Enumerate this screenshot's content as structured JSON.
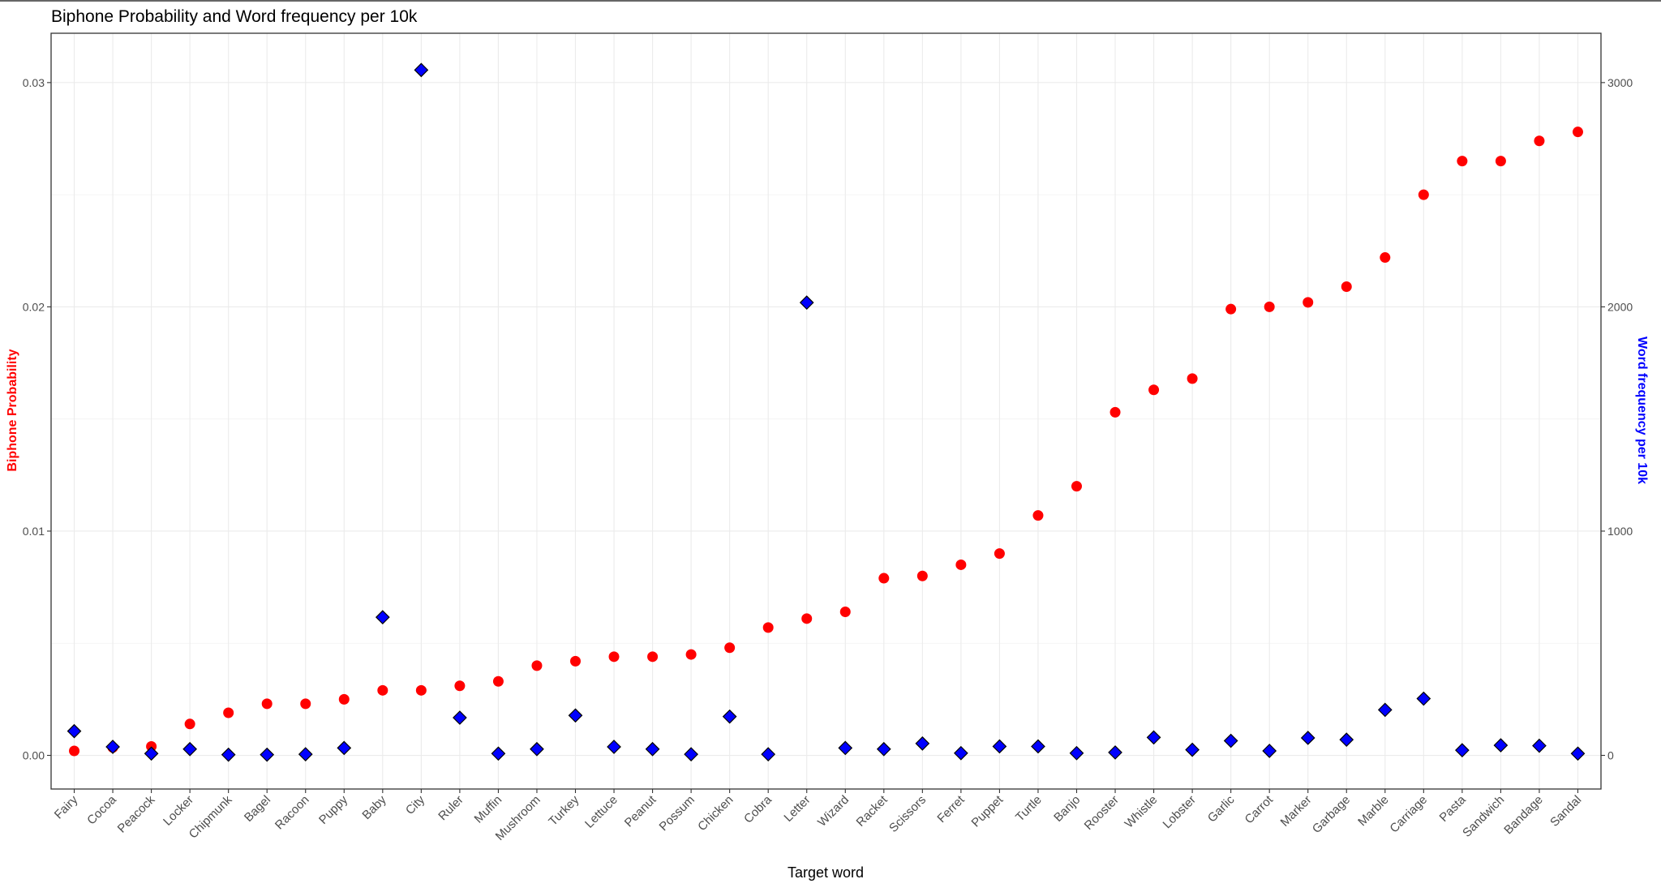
{
  "chart_data": {
    "type": "scatter",
    "title": "Biphone Probability and Word frequency per 10k",
    "xlabel": "Target word",
    "ylabel_left": "Biphone Probability",
    "ylabel_right": "Word frequency per 10k",
    "ylim_left": [
      -0.0015,
      0.0322
    ],
    "ylim_right": [
      -150,
      3220
    ],
    "yticks_left": [
      0.0,
      0.01,
      0.02,
      0.03
    ],
    "yticks_left_labels": [
      "0.00",
      "0.01",
      "0.02",
      "0.03"
    ],
    "yticks_right": [
      0,
      1000,
      2000,
      3000
    ],
    "yticks_right_labels": [
      "0",
      "1000",
      "2000",
      "3000"
    ],
    "grid": true,
    "colors": {
      "biphone": "#ff0000",
      "frequency": "#0000ff",
      "frequency_outline": "#000000"
    },
    "categories": [
      "Fairy",
      "Cocoa",
      "Peacock",
      "Locker",
      "Chipmunk",
      "Bagel",
      "Racoon",
      "Puppy",
      "Baby",
      "City",
      "Ruler",
      "Muffin",
      "Mushroom",
      "Turkey",
      "Lettuce",
      "Peanut",
      "Possum",
      "Chicken",
      "Cobra",
      "Letter",
      "Wizard",
      "Racket",
      "Scissors",
      "Ferret",
      "Puppet",
      "Turtle",
      "Banjo",
      "Rooster",
      "Whistle",
      "Lobster",
      "Garlic",
      "Carrot",
      "Marker",
      "Garbage",
      "Marble",
      "Carriage",
      "Pasta",
      "Sandwich",
      "Bandage",
      "Sandal"
    ],
    "series": [
      {
        "name": "Biphone Probability",
        "axis": "left",
        "marker": "circle",
        "values": [
          0.0002,
          0.00035,
          0.0004,
          0.0014,
          0.0019,
          0.0023,
          0.0023,
          0.0025,
          0.0029,
          0.0029,
          0.0031,
          0.0033,
          0.004,
          0.0042,
          0.0044,
          0.0044,
          0.0045,
          0.0048,
          0.0057,
          0.0061,
          0.0064,
          0.0079,
          0.008,
          0.0085,
          0.009,
          0.0107,
          0.012,
          0.0153,
          0.0163,
          0.0168,
          0.0199,
          0.02,
          0.0202,
          0.0209,
          0.0222,
          0.025,
          0.0265,
          0.0265,
          0.0274,
          0.0278
        ]
      },
      {
        "name": "Word frequency per 10k",
        "axis": "right",
        "marker": "diamond",
        "values": [
          108,
          38,
          8,
          28,
          3,
          3,
          5,
          33,
          616,
          3056,
          168,
          8,
          28,
          178,
          38,
          28,
          5,
          173,
          5,
          2019,
          33,
          28,
          53,
          10,
          40,
          40,
          10,
          13,
          80,
          25,
          65,
          20,
          78,
          70,
          203,
          253,
          23,
          45,
          43,
          8
        ]
      }
    ]
  }
}
